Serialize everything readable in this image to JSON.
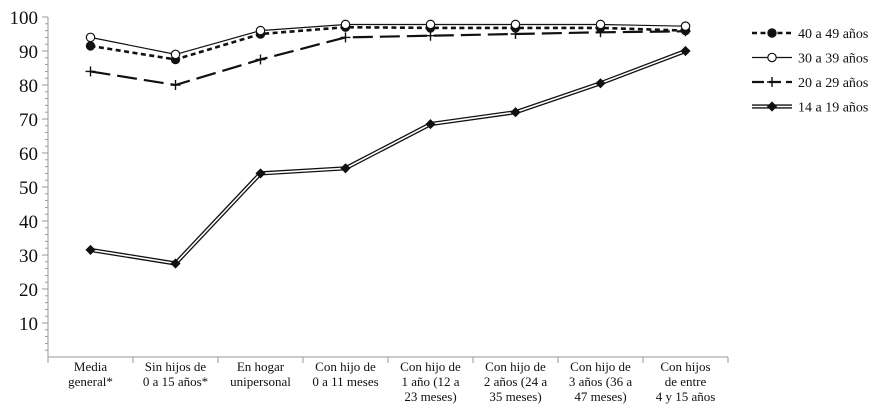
{
  "chart_data": {
    "type": "line",
    "title": "",
    "xlabel": "",
    "ylabel": "",
    "ylim": [
      0,
      100
    ],
    "yticks": [
      10,
      20,
      30,
      40,
      50,
      60,
      70,
      80,
      90,
      100
    ],
    "grid": false,
    "legend_position": "right",
    "categories": [
      [
        "Media",
        "general*"
      ],
      [
        "Sin hijos de",
        "0 a 15 años*"
      ],
      [
        "En hogar",
        "unipersonal"
      ],
      [
        "Con hijo de",
        "0 a 11 meses"
      ],
      [
        "Con hijo  de",
        "1 año (12 a",
        "23 meses)"
      ],
      [
        "Con hijo de",
        "2 años (24 a",
        "35 meses)"
      ],
      [
        "Con hijo de",
        "3 años (36 a",
        "47 meses)"
      ],
      [
        "Con hijos",
        "de entre",
        "4 y 15 años"
      ]
    ],
    "series": [
      {
        "name": "40 a 49 años",
        "values": [
          91.5,
          87.5,
          95,
          97,
          96.8,
          96.8,
          96.8,
          96
        ],
        "line": "dotted",
        "marker": "filled-circle",
        "color": "#111111"
      },
      {
        "name": "30 a 39 años",
        "values": [
          94,
          89,
          96,
          97.8,
          97.8,
          97.8,
          97.8,
          97.3
        ],
        "line": "solid",
        "marker": "open-circle",
        "color": "#111111"
      },
      {
        "name": "20 a 29 años",
        "values": [
          84,
          80,
          87.5,
          94,
          94.5,
          95,
          95.5,
          95.8
        ],
        "line": "long-dash",
        "marker": "plus",
        "color": "#111111"
      },
      {
        "name": "14 a 19 años",
        "values": [
          31.5,
          27.5,
          54,
          55.5,
          68.5,
          72,
          80.5,
          90
        ],
        "line": "double",
        "marker": "filled-diamond",
        "color": "#111111"
      }
    ]
  }
}
